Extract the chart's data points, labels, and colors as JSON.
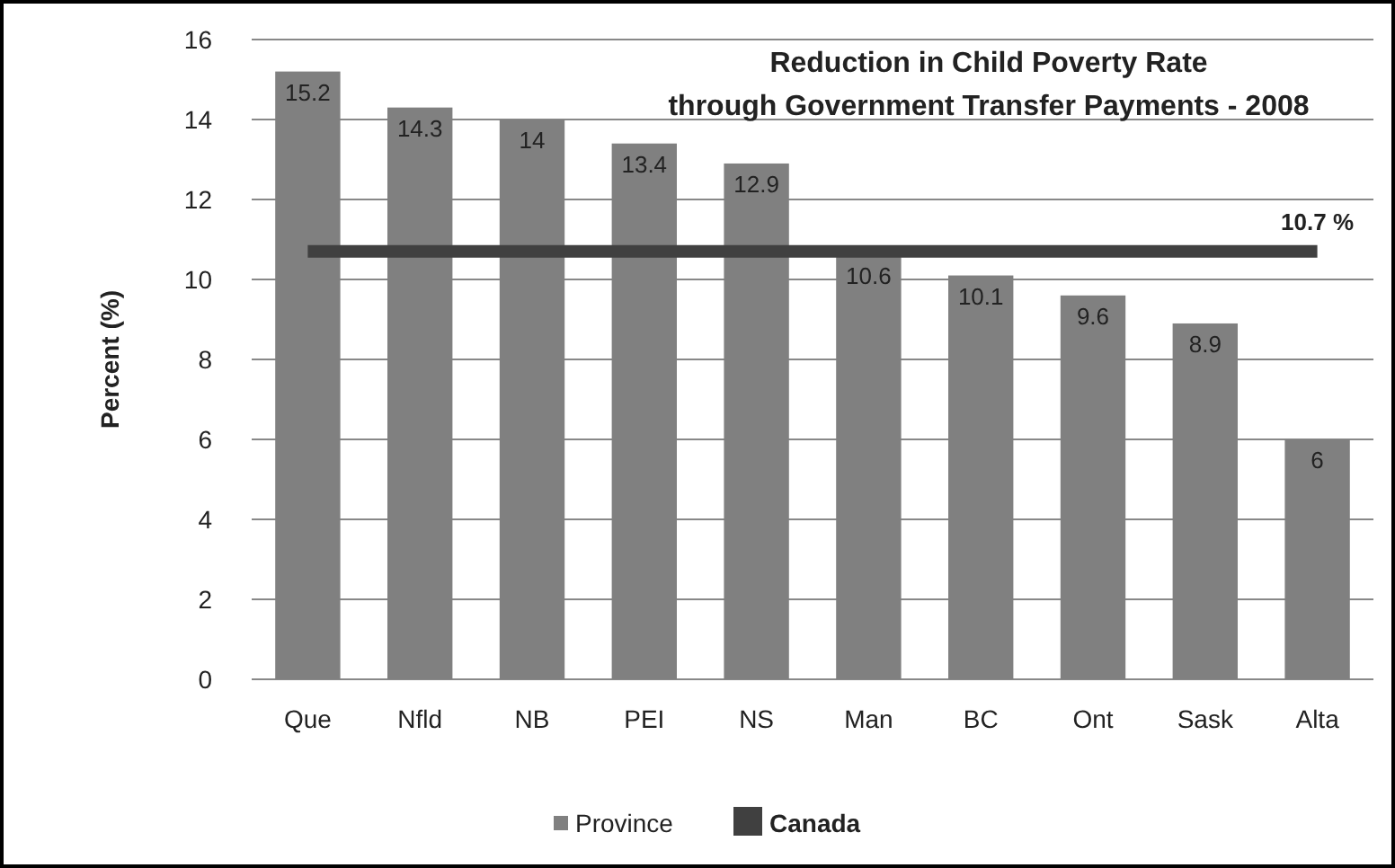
{
  "chart_data": {
    "type": "bar",
    "title": "Reduction in Child Poverty Rate through Government Transfer Payments - 2008",
    "ylabel": "Percent (%)",
    "categories": [
      "Que",
      "Nfld",
      "NB",
      "PEI",
      "NS",
      "Man",
      "BC",
      "Ont",
      "Sask",
      "Alta"
    ],
    "series": [
      {
        "name": "Province",
        "color": "#808080",
        "values": [
          15.2,
          14.3,
          14,
          13.4,
          12.9,
          10.6,
          10.1,
          9.6,
          8.9,
          6
        ],
        "value_labels": [
          "15.2",
          "14.3",
          "14",
          "13.4",
          "12.9",
          "10.6",
          "10.1",
          "9.6",
          "8.9",
          "6"
        ]
      },
      {
        "name": "Canada",
        "type": "line",
        "color": "#404040",
        "values": [
          10.7,
          10.7,
          10.7,
          10.7,
          10.7,
          10.7,
          10.7,
          10.7,
          10.7,
          10.7
        ],
        "value_labels": [
          null,
          null,
          null,
          null,
          null,
          null,
          null,
          null,
          null,
          "10.7 %"
        ]
      }
    ],
    "ylim": [
      0,
      16
    ],
    "yticks": [
      0,
      2,
      4,
      6,
      8,
      10,
      12,
      14,
      16
    ],
    "grid": "y",
    "legend": "bottom"
  }
}
